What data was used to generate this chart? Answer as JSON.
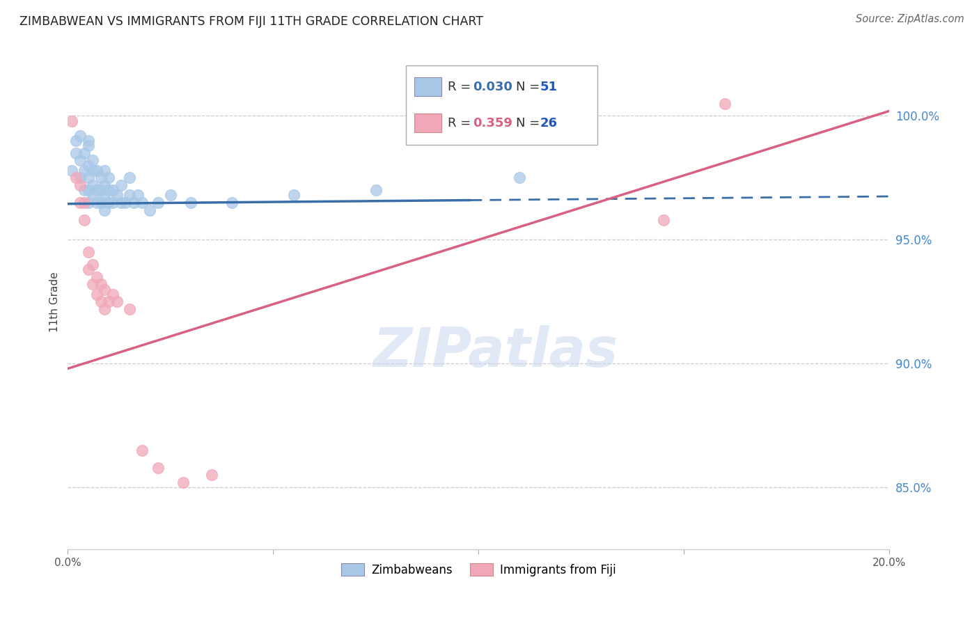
{
  "title": "ZIMBABWEAN VS IMMIGRANTS FROM FIJI 11TH GRADE CORRELATION CHART",
  "source": "Source: ZipAtlas.com",
  "ylabel": "11th Grade",
  "yticks": [
    85.0,
    90.0,
    95.0,
    100.0
  ],
  "xlim": [
    0.0,
    0.2
  ],
  "ylim": [
    82.5,
    102.5
  ],
  "blue_R": 0.03,
  "blue_N": 51,
  "pink_R": 0.359,
  "pink_N": 26,
  "blue_color": "#A8C8E8",
  "pink_color": "#F0A8B8",
  "blue_line_color": "#3A6EA8",
  "pink_line_color": "#D86080",
  "tick_color": "#4488CC",
  "background_color": "#FFFFFF",
  "blue_scatter_x": [
    0.001,
    0.002,
    0.002,
    0.003,
    0.003,
    0.003,
    0.004,
    0.004,
    0.004,
    0.005,
    0.005,
    0.005,
    0.005,
    0.005,
    0.005,
    0.006,
    0.006,
    0.006,
    0.006,
    0.007,
    0.007,
    0.007,
    0.008,
    0.008,
    0.008,
    0.009,
    0.009,
    0.009,
    0.009,
    0.01,
    0.01,
    0.01,
    0.011,
    0.011,
    0.012,
    0.013,
    0.013,
    0.014,
    0.015,
    0.015,
    0.016,
    0.017,
    0.018,
    0.02,
    0.022,
    0.025,
    0.03,
    0.04,
    0.055,
    0.075,
    0.11
  ],
  "blue_scatter_y": [
    97.8,
    98.5,
    99.0,
    97.5,
    98.2,
    99.2,
    97.0,
    97.8,
    98.5,
    96.5,
    97.0,
    97.5,
    98.0,
    98.8,
    99.0,
    96.8,
    97.2,
    97.8,
    98.2,
    96.5,
    97.0,
    97.8,
    96.5,
    97.0,
    97.5,
    96.2,
    96.8,
    97.2,
    97.8,
    96.5,
    97.0,
    97.5,
    96.5,
    97.0,
    96.8,
    96.5,
    97.2,
    96.5,
    96.8,
    97.5,
    96.5,
    96.8,
    96.5,
    96.2,
    96.5,
    96.8,
    96.5,
    96.5,
    96.8,
    97.0,
    97.5
  ],
  "pink_scatter_x": [
    0.001,
    0.002,
    0.003,
    0.003,
    0.004,
    0.004,
    0.005,
    0.005,
    0.006,
    0.006,
    0.007,
    0.007,
    0.008,
    0.008,
    0.009,
    0.009,
    0.01,
    0.011,
    0.012,
    0.015,
    0.018,
    0.022,
    0.028,
    0.035,
    0.145,
    0.16
  ],
  "pink_scatter_y": [
    99.8,
    97.5,
    96.5,
    97.2,
    95.8,
    96.5,
    93.8,
    94.5,
    93.2,
    94.0,
    92.8,
    93.5,
    92.5,
    93.2,
    92.2,
    93.0,
    92.5,
    92.8,
    92.5,
    92.2,
    86.5,
    85.8,
    85.2,
    85.5,
    95.8,
    100.5
  ],
  "blue_line_x0": 0.0,
  "blue_line_x_solid_end": 0.098,
  "blue_line_x1": 0.2,
  "blue_line_y0": 96.45,
  "blue_line_y1": 96.75,
  "pink_line_x0": 0.0,
  "pink_line_x1": 0.2,
  "pink_line_y0": 89.8,
  "pink_line_y1": 100.2
}
